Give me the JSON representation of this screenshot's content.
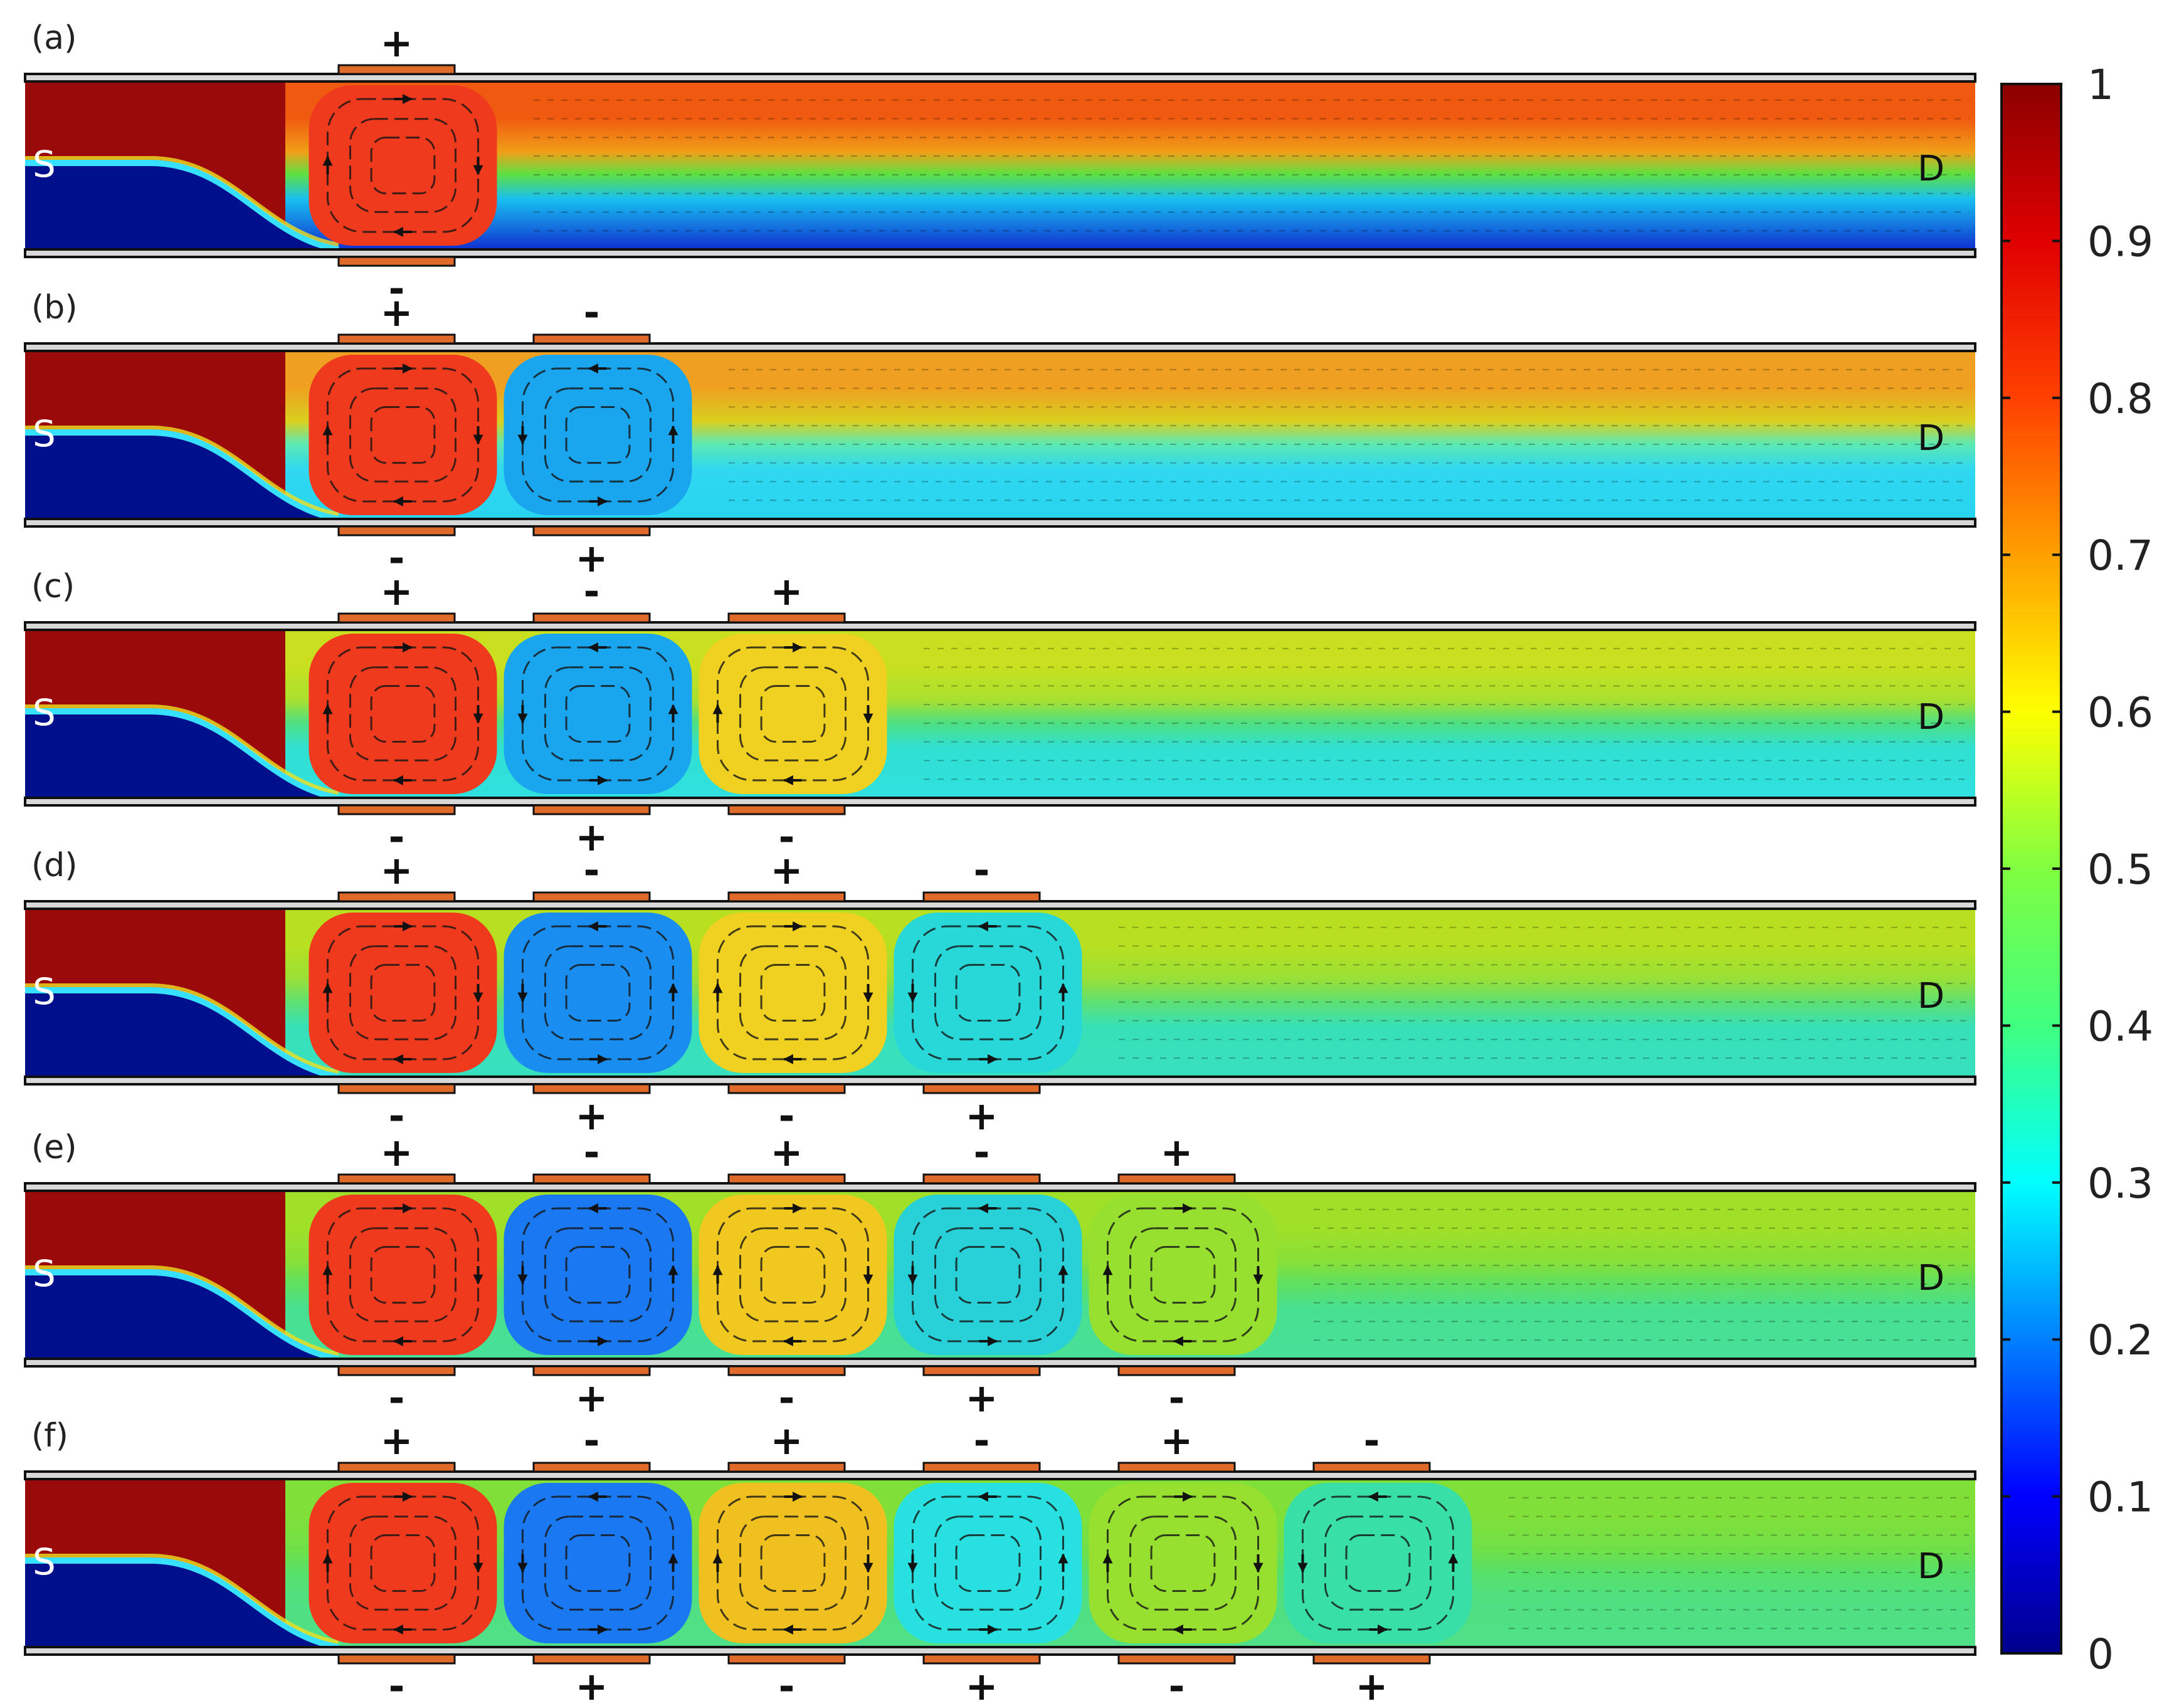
{
  "panels": [
    {
      "label": "(a)",
      "electrode_count": 1,
      "top_signs": [
        "+"
      ],
      "bottom_signs": [
        "-"
      ],
      "cell_colors": [
        "#f03a1e"
      ],
      "downstream": {
        "top": "#f05a10",
        "upper_mid": "#f0a018",
        "mid": "#60e040",
        "lower_mid": "#18c0f0",
        "bottom": "#1030d0"
      }
    },
    {
      "label": "(b)",
      "electrode_count": 2,
      "top_signs": [
        "+",
        "-"
      ],
      "bottom_signs": [
        "-",
        "+"
      ],
      "cell_colors": [
        "#f03a1e",
        "#1aa6ee"
      ],
      "downstream": {
        "top": "#f0a020",
        "upper_mid": "#d8d020",
        "mid": "#60e8b0",
        "lower_mid": "#30d8f0",
        "bottom": "#28d4f0"
      }
    },
    {
      "label": "(c)",
      "electrode_count": 3,
      "top_signs": [
        "+",
        "-",
        "+"
      ],
      "bottom_signs": [
        "-",
        "+",
        "-"
      ],
      "cell_colors": [
        "#f03a1e",
        "#1aa6ee",
        "#f0d020"
      ],
      "downstream": {
        "top": "#c8e020",
        "upper_mid": "#a8e030",
        "mid": "#50e080",
        "lower_mid": "#30e0d0",
        "bottom": "#30e0e0"
      }
    },
    {
      "label": "(d)",
      "electrode_count": 4,
      "top_signs": [
        "+",
        "-",
        "+",
        "-"
      ],
      "bottom_signs": [
        "-",
        "+",
        "-",
        "+"
      ],
      "cell_colors": [
        "#f03a1e",
        "#1a8ef0",
        "#f0d020",
        "#28d8d8"
      ],
      "downstream": {
        "top": "#b8e020",
        "upper_mid": "#98e038",
        "mid": "#60e070",
        "lower_mid": "#38e0b8",
        "bottom": "#38e0c0"
      }
    },
    {
      "label": "(e)",
      "electrode_count": 5,
      "top_signs": [
        "+",
        "-",
        "+",
        "-",
        "+"
      ],
      "bottom_signs": [
        "-",
        "+",
        "-",
        "+",
        "-"
      ],
      "cell_colors": [
        "#f03a1e",
        "#1a78f0",
        "#f0c820",
        "#28d0d8",
        "#98e030"
      ],
      "downstream": {
        "top": "#a0e028",
        "upper_mid": "#88e038",
        "mid": "#60e060",
        "lower_mid": "#48e090",
        "bottom": "#48e098"
      }
    },
    {
      "label": "(f)",
      "electrode_count": 6,
      "top_signs": [
        "+",
        "-",
        "+",
        "-",
        "+",
        "-"
      ],
      "bottom_signs": [
        "-",
        "+",
        "-",
        "+",
        "-",
        "+"
      ],
      "cell_colors": [
        "#f03a1e",
        "#1a78f0",
        "#f0c020",
        "#28e0e0",
        "#98e030",
        "#38e0a8"
      ],
      "downstream": {
        "top": "#80e038",
        "upper_mid": "#70e048",
        "mid": "#58e068",
        "lower_mid": "#50e080",
        "bottom": "#50e088"
      }
    }
  ],
  "source_label": "S",
  "drain_label": "D",
  "electrode_color": "#e06a2a",
  "inlet_colors": {
    "upper": "#9a0a0a",
    "lower": "#00108c"
  },
  "colorbar": {
    "min": 0,
    "max": 1,
    "tick_labels": [
      "0",
      "0.1",
      "0.2",
      "0.3",
      "0.4",
      "0.5",
      "0.6",
      "0.7",
      "0.8",
      "0.9",
      "1"
    ],
    "colormap": [
      "#00008c",
      "#0000ff",
      "#0080ff",
      "#00ffff",
      "#40ff80",
      "#80ff40",
      "#ffff00",
      "#ffa000",
      "#ff4000",
      "#e00000",
      "#8c0000"
    ]
  }
}
